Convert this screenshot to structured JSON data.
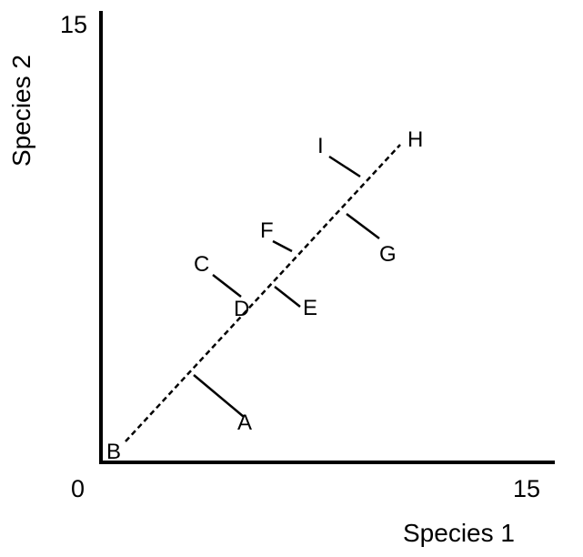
{
  "axes": {
    "x_label": "Species 1",
    "y_label": "Species 2",
    "origin_label": "0",
    "x_max_label": "15",
    "y_max_label": "15"
  },
  "points": {
    "A": "A",
    "B": "B",
    "C": "C",
    "D": "D",
    "E": "E",
    "F": "F",
    "G": "G",
    "H": "H",
    "I": "I"
  },
  "colors": {
    "ink": "#000000",
    "background": "#ffffff"
  }
}
